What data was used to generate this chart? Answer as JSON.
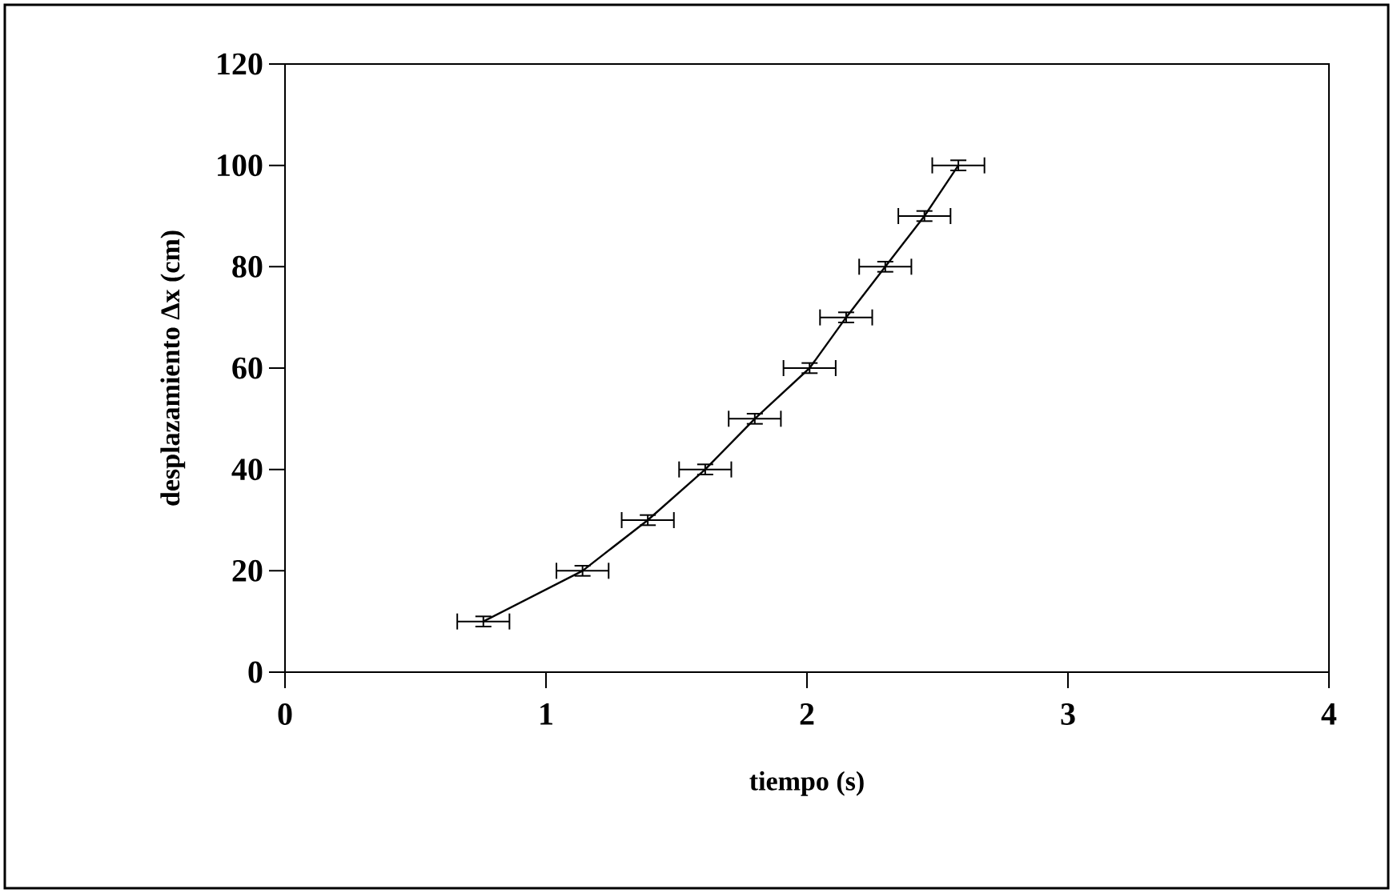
{
  "chart_data": {
    "type": "line",
    "xlabel": "tiempo (s)",
    "ylabel": "desplazamiento Δx (cm)",
    "x": [
      0.76,
      1.14,
      1.39,
      1.61,
      1.8,
      2.01,
      2.15,
      2.3,
      2.45,
      2.58
    ],
    "values": [
      10,
      20,
      30,
      40,
      50,
      60,
      70,
      80,
      90,
      100
    ],
    "xerrors": [
      0.1,
      0.1,
      0.1,
      0.1,
      0.1,
      0.1,
      0.1,
      0.1,
      0.1,
      0.1
    ],
    "errors": [
      1,
      1,
      1,
      1,
      1,
      1,
      1,
      1,
      1,
      1
    ],
    "color": "#000000",
    "marker": "none",
    "line_style": "solid",
    "grid": false,
    "xlim": [
      0,
      4
    ],
    "ylim": [
      0,
      120
    ],
    "xticks": [
      0,
      1,
      2,
      3,
      4
    ],
    "yticks": [
      0,
      20,
      40,
      60,
      80,
      100,
      120
    ]
  }
}
